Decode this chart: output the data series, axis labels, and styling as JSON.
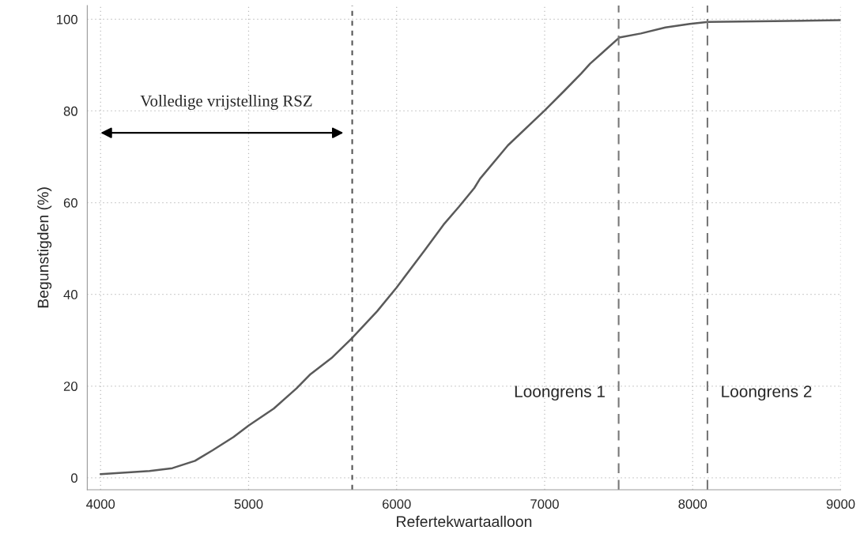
{
  "chart_data": {
    "type": "line",
    "xlabel": "Refertekwartaalloon",
    "ylabel": "Begunstigden (%)",
    "series": [
      {
        "color": "#5a5a5a",
        "x": [
          4000,
          4331,
          4485,
          4638,
          4757,
          4898,
          5000,
          5170,
          5324,
          5418,
          5560,
          5697,
          5868,
          6000,
          6187,
          6317,
          6421,
          6525,
          6563,
          6752,
          7000,
          7130,
          7248,
          7307,
          7504,
          7650,
          7816,
          7981,
          8104,
          8548,
          9000
        ],
        "values": [
          0.8,
          1.5,
          2.1,
          3.7,
          6.0,
          8.9,
          11.4,
          15.1,
          19.5,
          22.6,
          26.1,
          30.4,
          36.3,
          41.5,
          49.5,
          55.2,
          59.1,
          63.2,
          65.2,
          72.5,
          80.1,
          84.3,
          88.2,
          90.3,
          96.0,
          96.9,
          98.2,
          99.0,
          99.4,
          99.6,
          99.8
        ]
      }
    ],
    "xlim": [
      3910,
      9000
    ],
    "ylim": [
      -2.6,
      103
    ],
    "xticks": [
      4000,
      5000,
      6000,
      7000,
      8000,
      9000
    ],
    "yticks": [
      0,
      20,
      40,
      60,
      80,
      100
    ],
    "grid": true,
    "marker": "none",
    "line_style": "solid",
    "ref_lines": [
      {
        "axis": "x",
        "value": 5700,
        "color": "#555555",
        "line_style": "dotted"
      },
      {
        "axis": "x",
        "value": 7500,
        "label": "Loongrens 1",
        "color": "#777777",
        "line_style": "dashed"
      },
      {
        "axis": "x",
        "value": 8100,
        "label": "Loongrens 2",
        "color": "#777777",
        "line_style": "dashed"
      }
    ],
    "annotations": [
      "Volledige vrijstelling RSZ"
    ]
  }
}
